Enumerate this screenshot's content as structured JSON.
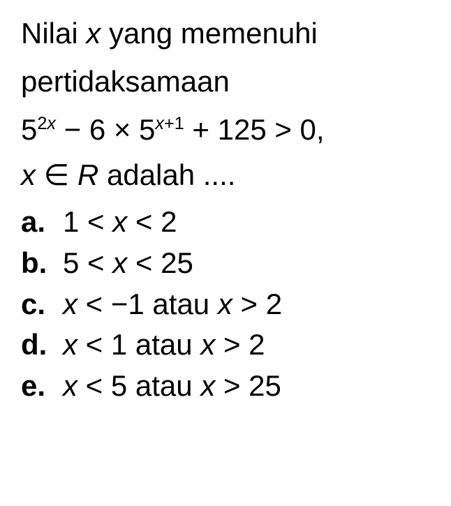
{
  "question": {
    "line1_part1": "Nilai ",
    "line1_var": "x",
    "line1_part2": " yang memenuhi",
    "line2": "pertidaksamaan",
    "equation_base1": "5",
    "equation_exp1_num": "2",
    "equation_exp1_var": "x",
    "equation_mid1": " −  6 × 5",
    "equation_exp2_var": "x",
    "equation_exp2_rest": "+1",
    "equation_end": " + 125 > 0,",
    "line4_var": "x",
    "line4_elem": " ∈ ",
    "line4_set": "R",
    "line4_text": " adalah ...."
  },
  "options": {
    "a": {
      "label": "a.",
      "pre": "1 < ",
      "var": "x",
      "post": " < 2"
    },
    "b": {
      "label": "b.",
      "pre": "5 < ",
      "var": "x",
      "post": " < 25"
    },
    "c": {
      "label": "c.",
      "var1": "x",
      "mid1": " < −1 atau  ",
      "var2": "x",
      "post": " > 2"
    },
    "d": {
      "label": "d.",
      "var1": "x",
      "mid1": " < 1 atau  ",
      "var2": "x",
      "post": " > 2"
    },
    "e": {
      "label": "e.",
      "var1": "x",
      "mid1": " < 5 atau  ",
      "var2": "x",
      "post": " > 25"
    }
  },
  "style": {
    "font_size": 42,
    "text_color": "#000000",
    "background_color": "#ffffff"
  }
}
